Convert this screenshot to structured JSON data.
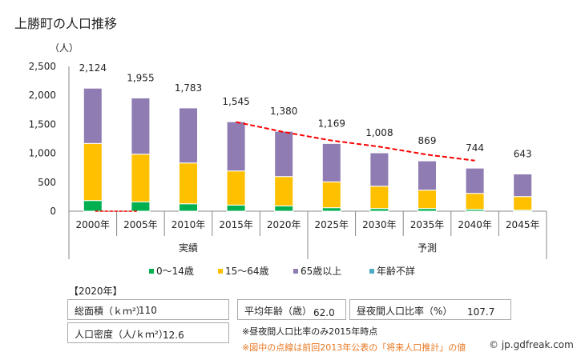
{
  "title": "上勝町の人口推移",
  "chart_data": {
    "type": "bar",
    "stacked": true,
    "title": "上勝町の人口推移",
    "ylabel": "（人）",
    "ylim": [
      0,
      2500
    ],
    "yticks": [
      0,
      500,
      1000,
      1500,
      2000,
      2500
    ],
    "ytick_labels": [
      "0",
      "500",
      "1,000",
      "1,500",
      "2,000",
      "2,500"
    ],
    "categories": [
      "2000年",
      "2005年",
      "2010年",
      "2015年",
      "2020年",
      "2025年",
      "2030年",
      "2035年",
      "2040年",
      "2045年"
    ],
    "groups": [
      {
        "label": "実績",
        "from": 0,
        "to": 4
      },
      {
        "label": "予測",
        "from": 5,
        "to": 9
      }
    ],
    "totals": [
      2124,
      1955,
      1783,
      1545,
      1380,
      1169,
      1008,
      869,
      744,
      643
    ],
    "total_labels": [
      "2,124",
      "1,955",
      "1,783",
      "1,545",
      "1,380",
      "1,169",
      "1,008",
      "869",
      "744",
      "643"
    ],
    "series": [
      {
        "name": "0〜14歳",
        "color": "#00b050",
        "values": [
          184,
          162,
          128,
          106,
          92,
          60,
          46,
          46,
          32,
          18
        ]
      },
      {
        "name": "15〜64歳",
        "color": "#ffc000",
        "values": [
          986,
          823,
          705,
          589,
          506,
          447,
          386,
          318,
          276,
          235
        ]
      },
      {
        "name": "65歳以上",
        "color": "#8e7cb3",
        "values": [
          954,
          970,
          950,
          850,
          782,
          662,
          576,
          505,
          436,
          390
        ]
      },
      {
        "name": "年齢不詳",
        "color": "#4bacc6",
        "values": [
          0,
          0,
          0,
          0,
          0,
          0,
          0,
          0,
          0,
          0
        ]
      }
    ],
    "previous_projection": {
      "name": "前回2013年公表の「将来人口推計」",
      "color": "#ff0000",
      "style": "dashed",
      "x": [
        "2000年",
        "2005年"
      ],
      "values": [
        0,
        0
      ],
      "x2": [
        "2015年",
        "2020年",
        "2025年",
        "2030年",
        "2035年",
        "2040年"
      ],
      "values2": [
        1540,
        1367,
        1220,
        1114,
        976,
        874
      ]
    },
    "legend": [
      "0〜14歳",
      "15〜64歳",
      "65歳以上",
      "年齢不詳"
    ],
    "legend_position": "bottom"
  },
  "info": {
    "year_tag": "【2020年】",
    "area_label": "総面積（ｋｍ²）",
    "area_value": "110",
    "avg_age_label": "平均年齢（歳）",
    "avg_age_value": "62.0",
    "day_night_label": "昼夜間人口比率（%）",
    "day_night_value": "107.7",
    "density_label": "人口密度（人/ｋｍ²）",
    "density_value": "12.6",
    "note1": "※昼夜間人口比率のみ2015年時点",
    "note2": "※図中の点線は前回2013年公表の「将来人口推計」の値",
    "copyright": "© jp.gdfreak.com"
  }
}
